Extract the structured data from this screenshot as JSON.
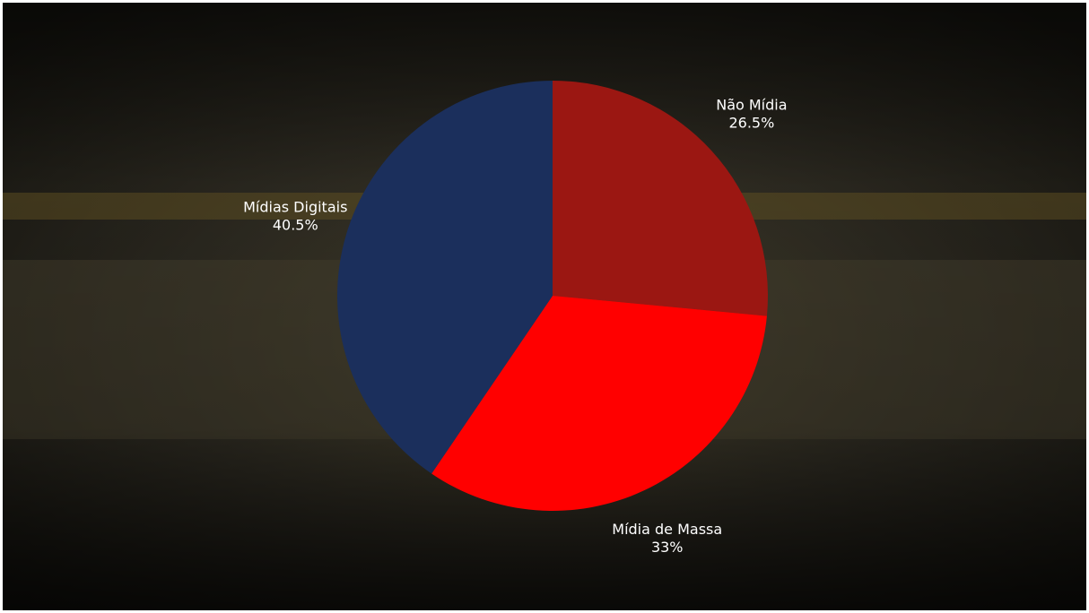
{
  "chart_data": {
    "type": "pie",
    "categories": [
      "Não Mídia",
      "Mídia de Massa",
      "Mídias Digitais"
    ],
    "values": [
      26.5,
      33,
      40.5
    ],
    "value_labels": [
      "26.5%",
      "33%",
      "40.5%"
    ],
    "colors": [
      "#9b1712",
      "#ff0000",
      "#1b2f5c"
    ]
  }
}
